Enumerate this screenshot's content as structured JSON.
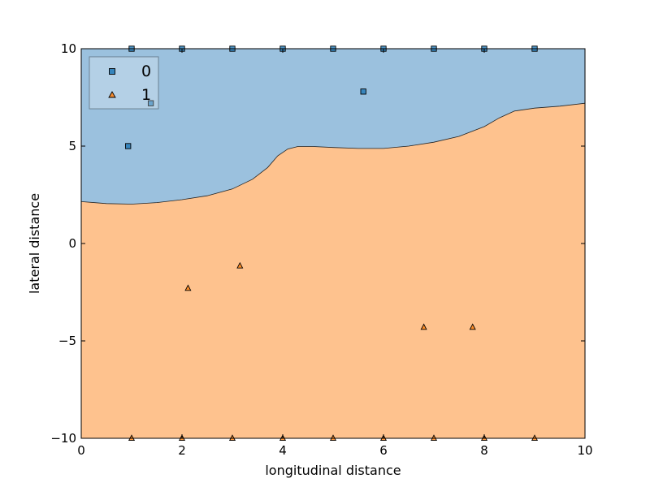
{
  "chart_data": {
    "type": "scatter",
    "title": "",
    "xlabel": "longitudinal distance",
    "ylabel": "lateral distance",
    "xlim": [
      0,
      10
    ],
    "ylim": [
      -10,
      10
    ],
    "x_ticks": [
      0,
      2,
      4,
      6,
      8,
      10
    ],
    "y_ticks": [
      -10,
      -5,
      0,
      5,
      10
    ],
    "x_tick_labels": [
      "0",
      "2",
      "4",
      "6",
      "8",
      "10"
    ],
    "y_tick_labels": [
      "−10",
      "−5",
      "0",
      "5",
      "10"
    ],
    "grid": false,
    "legend_position": "top-left",
    "decision_regions": [
      {
        "class": "0",
        "color": "#9bc1de",
        "side": "above"
      },
      {
        "class": "1",
        "color": "#fec28e",
        "side": "below"
      }
    ],
    "decision_boundary": [
      [
        0,
        2.15
      ],
      [
        0.5,
        2.05
      ],
      [
        1,
        2.02
      ],
      [
        1.5,
        2.1
      ],
      [
        2,
        2.25
      ],
      [
        2.5,
        2.45
      ],
      [
        3,
        2.8
      ],
      [
        3.4,
        3.3
      ],
      [
        3.7,
        3.9
      ],
      [
        3.9,
        4.5
      ],
      [
        4.1,
        4.85
      ],
      [
        4.3,
        4.98
      ],
      [
        4.6,
        4.98
      ],
      [
        5,
        4.93
      ],
      [
        5.5,
        4.88
      ],
      [
        6,
        4.88
      ],
      [
        6.5,
        5.0
      ],
      [
        7,
        5.2
      ],
      [
        7.5,
        5.5
      ],
      [
        8,
        6.0
      ],
      [
        8.3,
        6.45
      ],
      [
        8.6,
        6.8
      ],
      [
        9,
        6.95
      ],
      [
        9.5,
        7.05
      ],
      [
        10,
        7.2
      ]
    ],
    "series": [
      {
        "name": "0",
        "marker": "square",
        "color": "#1f77b4",
        "points": [
          [
            1,
            10
          ],
          [
            2,
            10
          ],
          [
            3,
            10
          ],
          [
            4,
            10
          ],
          [
            5,
            10
          ],
          [
            6,
            10
          ],
          [
            7,
            10
          ],
          [
            8,
            10
          ],
          [
            9,
            10
          ],
          [
            0.93,
            5.0
          ],
          [
            1.38,
            7.2
          ],
          [
            5.6,
            7.8
          ]
        ]
      },
      {
        "name": "1",
        "marker": "triangle",
        "color": "#ff7f0e",
        "points": [
          [
            1,
            -10
          ],
          [
            2,
            -10
          ],
          [
            3,
            -10
          ],
          [
            4,
            -10
          ],
          [
            5,
            -10
          ],
          [
            6,
            -10
          ],
          [
            7,
            -10
          ],
          [
            8,
            -10
          ],
          [
            9,
            -10
          ],
          [
            2.12,
            -2.3
          ],
          [
            3.15,
            -1.15
          ],
          [
            6.8,
            -4.3
          ],
          [
            7.77,
            -4.3
          ]
        ]
      }
    ]
  }
}
